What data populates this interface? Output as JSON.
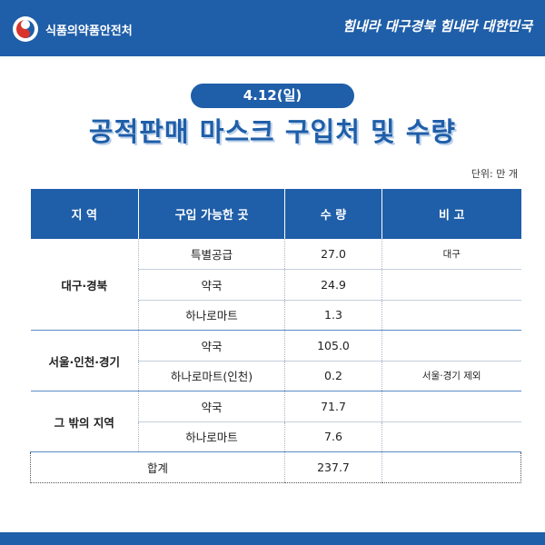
{
  "header": {
    "org_name": "식품의약품안전처",
    "slogan": "힘내라 대구경북 힘내라 대한민국"
  },
  "date_label": "4.12(일)",
  "title": "공적판매 마스크 구입처 및 수량",
  "unit_label": "단위: 만 개",
  "table": {
    "headers": [
      "지 역",
      "구입 가능한 곳",
      "수 량",
      "비 고"
    ],
    "groups": [
      {
        "region": "대구·경북",
        "rows": [
          {
            "place": "특별공급",
            "qty": "27.0",
            "note": "대구"
          },
          {
            "place": "약국",
            "qty": "24.9",
            "note": ""
          },
          {
            "place": "하나로마트",
            "qty": "1.3",
            "note": ""
          }
        ]
      },
      {
        "region": "서울·인천·경기",
        "rows": [
          {
            "place": "약국",
            "qty": "105.0",
            "note": ""
          },
          {
            "place": "하나로마트(인천)",
            "qty": "0.2",
            "note": "서울·경기 제외"
          }
        ]
      },
      {
        "region": "그 밖의 지역",
        "rows": [
          {
            "place": "약국",
            "qty": "71.7",
            "note": ""
          },
          {
            "place": "하나로마트",
            "qty": "7.6",
            "note": ""
          }
        ]
      }
    ],
    "total": {
      "label": "합계",
      "qty": "237.7",
      "note": ""
    }
  }
}
